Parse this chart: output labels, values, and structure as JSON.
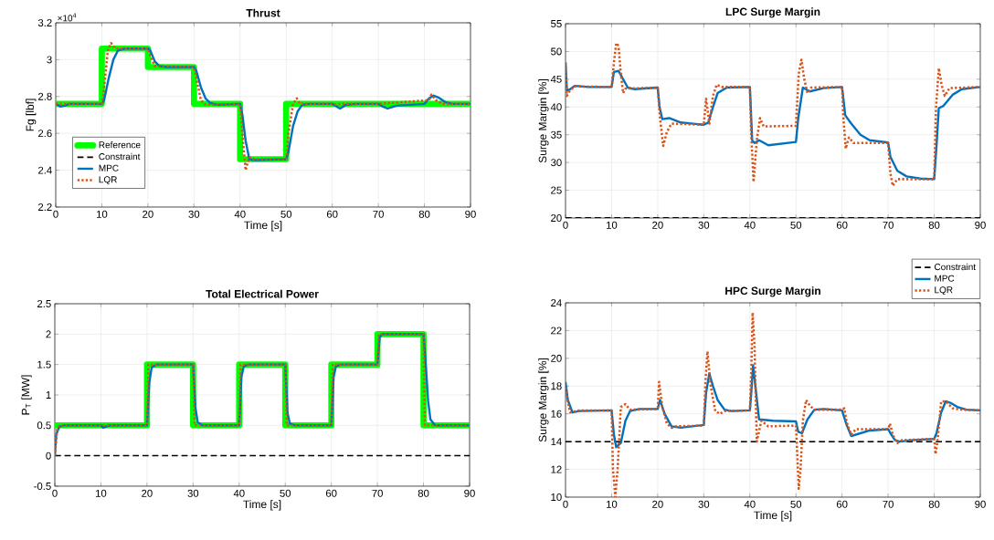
{
  "chart_data": [
    {
      "type": "line",
      "title": "Thrust",
      "xlabel": "Time [s]",
      "ylabel": "Fg  [lbf]",
      "annotations": [
        "×10$^{4}$"
      ],
      "xlim": [
        0,
        90
      ],
      "xticks": [
        0,
        10,
        20,
        30,
        40,
        50,
        60,
        70,
        80,
        90
      ],
      "ylim": [
        2.2,
        3.2
      ],
      "yticks": [
        2.2,
        2.4,
        2.6,
        2.8,
        3,
        3.2
      ],
      "grid": true,
      "legend": "bottom left",
      "series": [
        {
          "name": "Reference",
          "type": "step",
          "color": "#00ff00",
          "x": [
            0,
            10,
            20,
            30,
            40,
            50,
            90
          ],
          "values": [
            2.76,
            3.06,
            2.96,
            2.76,
            2.46,
            2.76,
            2.76
          ]
        },
        {
          "name": "Constraint",
          "color": "#000000",
          "line_style": "dashed"
        },
        {
          "name": "MPC",
          "color": "#0072bd",
          "line_style": "solid",
          "x": [
            0,
            1,
            2,
            3,
            10,
            10.5,
            11.5,
            12.5,
            13.5,
            15,
            20,
            20.5,
            21.5,
            22.5,
            24,
            30,
            30.5,
            31.5,
            32.5,
            33.5,
            35,
            40,
            40.5,
            41.2,
            42,
            43,
            50,
            50.5,
            51.5,
            52.5,
            53.5,
            55,
            60,
            61,
            61.7,
            63,
            65,
            70,
            71,
            72,
            74,
            80,
            81,
            82,
            83,
            84.5,
            86,
            90
          ],
          "values": [
            2.76,
            2.745,
            2.75,
            2.76,
            2.76,
            2.78,
            2.9,
            3.0,
            3.05,
            3.06,
            3.06,
            3.05,
            2.99,
            2.965,
            2.96,
            2.96,
            2.94,
            2.85,
            2.79,
            2.765,
            2.755,
            2.76,
            2.7,
            2.56,
            2.46,
            2.455,
            2.46,
            2.5,
            2.64,
            2.72,
            2.755,
            2.76,
            2.76,
            2.745,
            2.735,
            2.755,
            2.76,
            2.76,
            2.745,
            2.735,
            2.75,
            2.76,
            2.79,
            2.805,
            2.795,
            2.77,
            2.76,
            2.76
          ]
        },
        {
          "name": "LQR",
          "color": "#d95319",
          "line_style": "dotted",
          "x": [
            0,
            10,
            10.5,
            11.3,
            12,
            13,
            20,
            20.5,
            21.5,
            30,
            30.5,
            31.5,
            32.5,
            40,
            40.5,
            41.2,
            42,
            43,
            50,
            50.5,
            51.5,
            52.3,
            53,
            60,
            61,
            62,
            70,
            81,
            81.5,
            82.5,
            84,
            90
          ],
          "values": [
            2.76,
            2.76,
            2.85,
            3.05,
            3.09,
            3.06,
            3.06,
            3.02,
            2.965,
            2.96,
            2.9,
            2.78,
            2.755,
            2.76,
            2.6,
            2.4,
            2.47,
            2.46,
            2.46,
            2.6,
            2.76,
            2.79,
            2.76,
            2.76,
            2.755,
            2.76,
            2.76,
            2.78,
            2.81,
            2.78,
            2.76,
            2.76
          ]
        }
      ]
    },
    {
      "type": "line",
      "title": "LPC Surge Margin",
      "ylabel": "Surge Margin [%]",
      "xlim": [
        0,
        90
      ],
      "xticks": [
        0,
        10,
        20,
        30,
        40,
        50,
        60,
        70,
        80,
        90
      ],
      "ylim": [
        20,
        55
      ],
      "yticks": [
        20,
        25,
        30,
        35,
        40,
        45,
        50,
        55
      ],
      "grid": true,
      "series": [
        {
          "color": "#000000",
          "line_style": "dashed",
          "x": [
            0,
            90
          ],
          "values": [
            20,
            20
          ]
        },
        {
          "color": "#0072bd",
          "line_style": "solid",
          "x": [
            0,
            0.3,
            1,
            2,
            5,
            10,
            10.5,
            11.5,
            12.5,
            13.5,
            15,
            20,
            20.4,
            21,
            22.5,
            25,
            30,
            31,
            32,
            33,
            35,
            40,
            40.5,
            41,
            42,
            44,
            47,
            50,
            50.5,
            51.5,
            53,
            56,
            60,
            60.7,
            62,
            64,
            66,
            70,
            70.5,
            72,
            74,
            77,
            80,
            80.5,
            81,
            82,
            84,
            86,
            90
          ],
          "values": [
            48,
            43,
            43.2,
            43.8,
            43.6,
            43.6,
            46.3,
            46.5,
            45,
            43.5,
            43.2,
            43.5,
            40,
            37.8,
            38,
            37.2,
            36.8,
            37.2,
            40,
            42.5,
            43.5,
            43.6,
            34,
            33.5,
            34,
            33.1,
            33.4,
            33.7,
            38,
            43.5,
            42.8,
            43.4,
            43.6,
            38.5,
            37,
            35,
            34,
            33.6,
            31,
            28.5,
            27.5,
            27.1,
            27,
            33,
            39.8,
            40.2,
            42.2,
            43.2,
            43.6
          ]
        },
        {
          "color": "#d95319",
          "line_style": "dotted",
          "x": [
            0,
            0.3,
            1,
            2,
            10,
            10.5,
            11,
            11.5,
            12,
            12.5,
            13,
            20,
            20.5,
            21.2,
            22,
            23,
            30,
            30.5,
            31.2,
            32,
            32.8,
            34,
            40,
            40.3,
            40.8,
            41.5,
            42.2,
            43,
            50,
            50.6,
            51.2,
            51.8,
            52.5,
            53.3,
            60,
            60.3,
            60.8,
            61.5,
            62.5,
            70,
            70.5,
            71,
            72,
            80,
            80.4,
            81,
            81.6,
            82.3,
            83.3,
            90
          ],
          "values": [
            48,
            42,
            43,
            43.7,
            43.6,
            48,
            51.5,
            51,
            46,
            42.5,
            43.3,
            43.5,
            38,
            33,
            35.5,
            37,
            36.8,
            41.5,
            37,
            42,
            44,
            43.6,
            43.6,
            35,
            26.5,
            34,
            38,
            36.5,
            36.6,
            46,
            48.5,
            45,
            42.5,
            43.5,
            43.6,
            38,
            32.5,
            34.5,
            33.5,
            33.5,
            28,
            25.8,
            27,
            27,
            40,
            47,
            44,
            42,
            43.4,
            43.6
          ]
        }
      ]
    },
    {
      "type": "line",
      "title": "Total Electrical Power",
      "xlabel": "Time [s]",
      "ylabel": "P$_{T}$   [MW]",
      "xlim": [
        0,
        90
      ],
      "xticks": [
        0,
        10,
        20,
        30,
        40,
        50,
        60,
        70,
        80,
        90
      ],
      "ylim": [
        -0.5,
        2.5
      ],
      "yticks": [
        -0.5,
        0,
        0.5,
        1,
        1.5,
        2,
        2.5
      ],
      "grid": true,
      "series": [
        {
          "type": "step",
          "color": "#00ff00",
          "x": [
            0,
            20,
            30,
            40,
            50,
            60,
            70,
            80,
            90
          ],
          "values": [
            0.5,
            1.5,
            0.5,
            1.5,
            0.5,
            1.5,
            2.0,
            0.5,
            0.5
          ]
        },
        {
          "color": "#000000",
          "line_style": "dashed",
          "x": [
            0,
            90
          ],
          "values": [
            0,
            0
          ]
        },
        {
          "color": "#0072bd",
          "line_style": "solid",
          "x": [
            0,
            0.3,
            1,
            2,
            10,
            10.5,
            11.5,
            12,
            20,
            20.5,
            21,
            22,
            30,
            30.5,
            31,
            32,
            40,
            40.5,
            41,
            42,
            50,
            50.5,
            51,
            52,
            60,
            60.5,
            61,
            62,
            70,
            70.5,
            71,
            80,
            80.5,
            81,
            81.5,
            82.5,
            90
          ],
          "values": [
            0,
            0.35,
            0.48,
            0.5,
            0.5,
            0.46,
            0.49,
            0.5,
            0.5,
            1.2,
            1.45,
            1.5,
            1.5,
            0.8,
            0.55,
            0.5,
            0.5,
            1.3,
            1.47,
            1.5,
            1.5,
            0.7,
            0.53,
            0.5,
            0.5,
            1.3,
            1.47,
            1.5,
            1.5,
            1.95,
            2.0,
            2.0,
            1.5,
            0.9,
            0.6,
            0.5,
            0.5
          ]
        },
        {
          "color": "#d95319",
          "line_style": "dotted",
          "x": [
            0,
            0.5,
            1,
            20,
            20.3,
            30,
            30.3,
            40,
            40.3,
            50,
            50.3,
            60,
            60.3,
            70,
            70.3,
            80,
            80.3,
            90
          ],
          "values": [
            0,
            0.45,
            0.5,
            0.5,
            1.5,
            1.5,
            0.5,
            0.5,
            1.5,
            1.5,
            0.5,
            0.5,
            1.5,
            1.5,
            2.0,
            2.0,
            0.5,
            0.5
          ]
        }
      ]
    },
    {
      "type": "line",
      "title": "HPC Surge Margin",
      "xlabel": "Time [s]",
      "ylabel": "Surge Margin [%]",
      "xlim": [
        0,
        90
      ],
      "xticks": [
        0,
        10,
        20,
        30,
        40,
        50,
        60,
        70,
        80,
        90
      ],
      "ylim": [
        10,
        24
      ],
      "yticks": [
        10,
        12,
        14,
        16,
        18,
        20,
        22,
        24
      ],
      "grid": true,
      "legend": "top right",
      "series": [
        {
          "name": "Constraint",
          "color": "#000000",
          "line_style": "dashed",
          "x": [
            0,
            90
          ],
          "values": [
            14,
            14
          ]
        },
        {
          "name": "MPC",
          "color": "#0072bd",
          "line_style": "solid",
          "x": [
            0,
            0.5,
            1.5,
            3,
            10,
            10.5,
            11,
            12,
            13,
            14,
            16,
            20,
            20.5,
            21.5,
            23,
            25,
            30,
            30.5,
            31.2,
            32,
            33,
            34.5,
            36,
            40,
            40.3,
            40.7,
            41.2,
            42,
            45,
            50,
            50.5,
            51.3,
            52.5,
            54,
            56,
            60,
            61,
            62,
            63,
            66,
            70,
            70.5,
            71.5,
            72.5,
            75,
            80,
            80.5,
            81.5,
            82.5,
            83.5,
            85,
            87,
            90
          ],
          "values": [
            18.3,
            17,
            16.1,
            16.2,
            16.25,
            14.5,
            13.6,
            13.9,
            15.5,
            16.2,
            16.35,
            16.35,
            17,
            16,
            15.1,
            15,
            15.2,
            17.5,
            18.9,
            18,
            17,
            16.3,
            16.2,
            16.25,
            17.5,
            19.5,
            18,
            15.6,
            15.5,
            15.45,
            14.7,
            14.6,
            15.6,
            16.3,
            16.35,
            16.25,
            15.2,
            14.4,
            14.5,
            14.8,
            14.9,
            14.6,
            14.1,
            14,
            14.1,
            14.2,
            14.6,
            16.1,
            16.9,
            16.8,
            16.5,
            16.3,
            16.25
          ]
        },
        {
          "name": "LQR",
          "color": "#d95319",
          "line_style": "dotted",
          "x": [
            0,
            0.5,
            1,
            3,
            10,
            10.3,
            10.8,
            11.3,
            12,
            13,
            14,
            20,
            20.3,
            21,
            22,
            23,
            24,
            30,
            30.4,
            30.8,
            31.5,
            32.5,
            33.5,
            34.5,
            40,
            40.3,
            40.6,
            41,
            41.5,
            42.5,
            44,
            50,
            50.3,
            50.6,
            51,
            51.5,
            52.2,
            53,
            54,
            60,
            60.5,
            61,
            62,
            63,
            70,
            70.4,
            71,
            72,
            73,
            80,
            80.3,
            80.7,
            81.5,
            82.5,
            84,
            86,
            90
          ],
          "values": [
            17.9,
            16.9,
            16.1,
            16.25,
            16.25,
            12,
            10,
            12,
            16.5,
            16.7,
            16.3,
            16.35,
            18.3,
            16.5,
            15.3,
            15,
            15.1,
            15.15,
            18.5,
            20.5,
            18,
            16.2,
            16,
            16.2,
            16.25,
            19,
            23.3,
            21,
            14,
            15.5,
            15.1,
            15.15,
            13,
            10.6,
            12,
            15.5,
            17,
            16.6,
            16.3,
            16.3,
            16.4,
            15.4,
            14.5,
            14.9,
            14.9,
            15.3,
            14.5,
            13.9,
            14.1,
            14.2,
            13.1,
            14,
            16.9,
            16.9,
            16.4,
            16.3,
            16.25
          ]
        }
      ]
    }
  ]
}
